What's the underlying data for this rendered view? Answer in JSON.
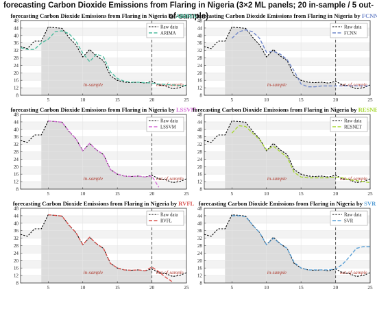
{
  "figure_title": "forecasting Carbon Dioxide Emissions from Flaring in Nigeria (3×2 ML panels; 20 in-sample / 5 out-of-sample)",
  "colors": {
    "raw": "#000000",
    "in_sample_shade": "#dcdcdc",
    "split_line": "#555555",
    "region_text": "#b03a2e"
  },
  "chart_data": [
    {
      "type": "line",
      "title_prefix": "forecasting Carbon Dioxide Emissions from Flaring in Nigeria by",
      "model": "ARIMA",
      "model_color": "#4dbb9e",
      "x": [
        1,
        2,
        3,
        4,
        5,
        6,
        7,
        8,
        9,
        10,
        11,
        12,
        13,
        14,
        15,
        16,
        17,
        18,
        19,
        20,
        21,
        22,
        23,
        24,
        25
      ],
      "xlim": [
        1,
        25
      ],
      "ylim": [
        8,
        48
      ],
      "xticks": [
        5,
        10,
        15,
        20,
        25
      ],
      "yticks": [
        8,
        12,
        16,
        20,
        24,
        28,
        32,
        36,
        40,
        44,
        48
      ],
      "split_x": 20,
      "in_sample_label": "in-sample",
      "out_sample_label": "out-of-sample",
      "grid": true,
      "legend_position": "top-right",
      "series": [
        {
          "name": "Raw data",
          "values": [
            34,
            33,
            37,
            37,
            44.5,
            44.2,
            43.8,
            39,
            35,
            28.5,
            32.5,
            29,
            26.5,
            18.5,
            16,
            15,
            14.8,
            15,
            14.5,
            15.5,
            13.5,
            13,
            11.5,
            12,
            13.5
          ]
        },
        {
          "name": "ARIMA",
          "values": [
            33.5,
            32.5,
            32.5,
            36,
            38,
            42,
            42.5,
            41,
            37,
            30.5,
            26,
            30,
            28.5,
            20.5,
            17,
            15.5,
            15,
            15,
            14.8,
            14.5,
            14,
            13.8,
            13.5,
            13.2,
            13
          ]
        }
      ]
    },
    {
      "type": "line",
      "title_prefix": "forecasting Carbon Dioxide Emissions from Flaring in Nigeria by",
      "model": "FCNN",
      "model_color": "#6f86c9",
      "x": [
        1,
        2,
        3,
        4,
        5,
        6,
        7,
        8,
        9,
        10,
        11,
        12,
        13,
        14,
        15,
        16,
        17,
        18,
        19,
        20,
        21,
        22,
        23,
        24,
        25
      ],
      "xlim": [
        1,
        25
      ],
      "ylim": [
        8,
        48
      ],
      "xticks": [
        5,
        10,
        15,
        20,
        25
      ],
      "yticks": [
        8,
        12,
        16,
        20,
        24,
        28,
        32,
        36,
        40,
        44,
        48
      ],
      "split_x": 20,
      "in_sample_label": "in-sample",
      "out_sample_label": "out-of-sample",
      "grid": true,
      "legend_position": "top-right",
      "series": [
        {
          "name": "Raw data",
          "values": [
            34,
            33,
            37,
            37,
            44.5,
            44.2,
            43.8,
            39,
            35,
            28.5,
            32.5,
            29,
            26.5,
            18.5,
            16,
            15,
            14.8,
            15,
            14.5,
            15.5,
            13.5,
            13,
            11.5,
            12,
            13.5
          ]
        },
        {
          "name": "FCNN",
          "values": [
            null,
            null,
            null,
            null,
            38.5,
            42,
            43,
            42,
            38.5,
            31,
            31.5,
            30,
            27,
            21,
            14,
            12.5,
            12.5,
            13,
            13,
            13,
            13,
            13,
            13,
            13,
            13
          ]
        }
      ]
    },
    {
      "type": "line",
      "title_prefix": "forecasting Carbon Dioxide Emissions from Flaring in Nigeria by",
      "model": "LSSVM",
      "model_color": "#d46ad6",
      "x": [
        1,
        2,
        3,
        4,
        5,
        6,
        7,
        8,
        9,
        10,
        11,
        12,
        13,
        14,
        15,
        16,
        17,
        18,
        19,
        20,
        21,
        22,
        23,
        24,
        25
      ],
      "xlim": [
        1,
        25
      ],
      "ylim": [
        8,
        48
      ],
      "xticks": [
        5,
        10,
        15,
        20,
        25
      ],
      "yticks": [
        8,
        12,
        16,
        20,
        24,
        28,
        32,
        36,
        40,
        44,
        48
      ],
      "split_x": 20,
      "in_sample_label": "in-sample",
      "out_sample_label": "out-of-sample",
      "grid": true,
      "legend_position": "top-right",
      "series": [
        {
          "name": "Raw data",
          "values": [
            34,
            33,
            37,
            37,
            44.5,
            44.2,
            43.8,
            39,
            35,
            28.5,
            32.5,
            29,
            26.5,
            18.5,
            16,
            15,
            14.8,
            15,
            14.5,
            15.5,
            13.5,
            13,
            11.5,
            12,
            13.5
          ]
        },
        {
          "name": "LSSVM",
          "values": [
            null,
            null,
            null,
            null,
            44.5,
            44.2,
            43.8,
            39,
            35,
            28.5,
            32.5,
            29,
            26.5,
            18.5,
            16,
            15,
            14.8,
            15,
            14.5,
            15,
            9,
            null,
            null,
            null,
            null
          ]
        }
      ]
    },
    {
      "type": "line",
      "title_prefix": "forecasting Carbon Dioxide Emissions from Flaring in Nigeria by",
      "model": "RESNET",
      "model_color": "#a8d834",
      "x": [
        1,
        2,
        3,
        4,
        5,
        6,
        7,
        8,
        9,
        10,
        11,
        12,
        13,
        14,
        15,
        16,
        17,
        18,
        19,
        20,
        21,
        22,
        23,
        24,
        25
      ],
      "xlim": [
        1,
        25
      ],
      "ylim": [
        8,
        48
      ],
      "xticks": [
        5,
        10,
        15,
        20,
        25
      ],
      "yticks": [
        8,
        12,
        16,
        20,
        24,
        28,
        32,
        36,
        40,
        44,
        48
      ],
      "split_x": 20,
      "in_sample_label": "in-sample",
      "out_sample_label": "out-of-sample",
      "grid": true,
      "legend_position": "top-right",
      "series": [
        {
          "name": "Raw data",
          "values": [
            34,
            33,
            37,
            37,
            44.5,
            44.2,
            43.8,
            39,
            35,
            28.5,
            32.5,
            29,
            26.5,
            18.5,
            16,
            15,
            14.8,
            15,
            14.5,
            15.5,
            13.5,
            13,
            11.5,
            12,
            13.5
          ]
        },
        {
          "name": "RESNET",
          "values": [
            null,
            null,
            null,
            null,
            38,
            42,
            41.5,
            38,
            34.5,
            29,
            31,
            28,
            25,
            17,
            14.5,
            14,
            14,
            14,
            14,
            14.5,
            14,
            13,
            12.5,
            12,
            11.5
          ]
        }
      ]
    },
    {
      "type": "line",
      "title_prefix": "forecasting Carbon Dioxide Emissions from Flaring in Nigeria by",
      "model": "RVFL",
      "model_color": "#d9534f",
      "x": [
        1,
        2,
        3,
        4,
        5,
        6,
        7,
        8,
        9,
        10,
        11,
        12,
        13,
        14,
        15,
        16,
        17,
        18,
        19,
        20,
        21,
        22,
        23,
        24,
        25
      ],
      "xlim": [
        1,
        25
      ],
      "ylim": [
        8,
        48
      ],
      "xticks": [
        5,
        10,
        15,
        20,
        25
      ],
      "yticks": [
        8,
        12,
        16,
        20,
        24,
        28,
        32,
        36,
        40,
        44,
        48
      ],
      "split_x": 20,
      "in_sample_label": "in-sample",
      "out_sample_label": "out-of-sample",
      "grid": true,
      "legend_position": "top-right",
      "series": [
        {
          "name": "Raw data",
          "values": [
            34,
            33,
            37,
            37,
            44.5,
            44.2,
            43.8,
            39,
            35,
            28.5,
            32.5,
            29,
            26.5,
            18.5,
            16,
            15,
            14.8,
            15,
            14.5,
            15.5,
            13.5,
            13,
            11.5,
            12,
            13.5
          ]
        },
        {
          "name": "RVFL",
          "values": [
            null,
            null,
            null,
            null,
            44.5,
            44.2,
            43.8,
            39,
            35,
            28.5,
            32.5,
            29,
            26.5,
            18.5,
            16,
            15,
            14.8,
            15,
            14.5,
            16.5,
            14,
            11,
            8.5,
            null,
            null
          ]
        }
      ]
    },
    {
      "type": "line",
      "title_prefix": "forecasting Carbon Dioxide Emissions from Flaring in Nigeria by",
      "model": "SVR",
      "model_color": "#5aa0d6",
      "x": [
        1,
        2,
        3,
        4,
        5,
        6,
        7,
        8,
        9,
        10,
        11,
        12,
        13,
        14,
        15,
        16,
        17,
        18,
        19,
        20,
        21,
        22,
        23,
        24,
        25
      ],
      "xlim": [
        1,
        25
      ],
      "ylim": [
        8,
        48
      ],
      "xticks": [
        5,
        10,
        15,
        20,
        25
      ],
      "yticks": [
        8,
        12,
        16,
        20,
        24,
        28,
        32,
        36,
        40,
        44,
        48
      ],
      "split_x": 20,
      "in_sample_label": "in-sample",
      "out_sample_label": "out-of-sample",
      "grid": true,
      "legend_position": "top-right",
      "series": [
        {
          "name": "Raw data",
          "values": [
            34,
            33,
            37,
            37,
            44.5,
            44.2,
            43.8,
            39,
            35,
            28.5,
            32.5,
            29,
            26.5,
            18.5,
            16,
            15,
            14.8,
            15,
            14.5,
            15.5,
            13.5,
            13,
            11.5,
            12,
            13.5
          ]
        },
        {
          "name": "SVR",
          "values": [
            null,
            null,
            null,
            null,
            44,
            44,
            43.5,
            39,
            35,
            28.5,
            32,
            29,
            26.5,
            19,
            16,
            15,
            15,
            15,
            15,
            15.5,
            18,
            22,
            26.5,
            27.5,
            27.5
          ]
        }
      ]
    }
  ]
}
